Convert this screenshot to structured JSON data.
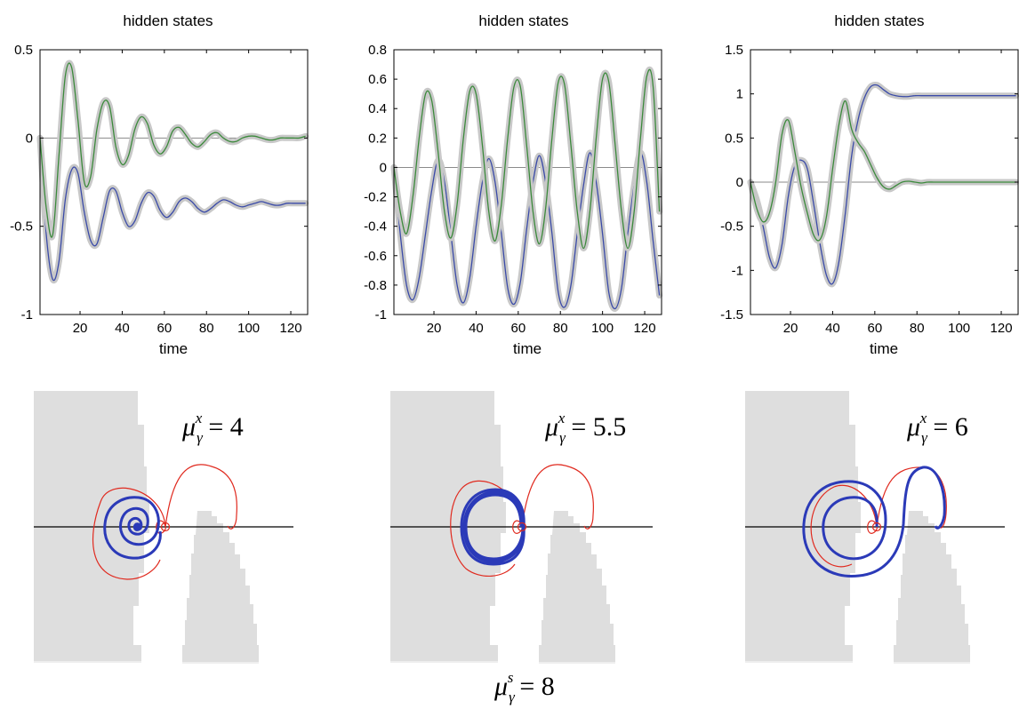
{
  "chart_data": [
    {
      "type": "line",
      "title": "hidden states",
      "xlabel": "time",
      "xlim": [
        1,
        128
      ],
      "ylim": [
        -1,
        0.5
      ],
      "xticks": [
        20,
        40,
        60,
        80,
        100,
        120
      ],
      "yticks": [
        -1,
        -0.5,
        0,
        0.5
      ],
      "ytick_labels": [
        "-1",
        "-0.5",
        "0",
        "0.5"
      ],
      "zero_line": true,
      "series": [
        {
          "color": "#3b4ba8",
          "x": [
            1,
            4,
            7,
            10,
            13,
            16,
            19,
            22,
            25,
            28,
            31,
            34,
            37,
            40,
            43,
            46,
            49,
            52,
            55,
            58,
            61,
            64,
            67,
            70,
            73,
            76,
            79,
            82,
            85,
            88,
            91,
            94,
            97,
            100,
            103,
            106,
            109,
            112,
            115,
            118,
            121,
            124,
            127
          ],
          "y": [
            0.0,
            -0.55,
            -0.8,
            -0.7,
            -0.35,
            -0.18,
            -0.2,
            -0.42,
            -0.58,
            -0.6,
            -0.45,
            -0.3,
            -0.3,
            -0.42,
            -0.5,
            -0.47,
            -0.37,
            -0.31,
            -0.33,
            -0.41,
            -0.45,
            -0.42,
            -0.36,
            -0.34,
            -0.36,
            -0.4,
            -0.42,
            -0.4,
            -0.37,
            -0.35,
            -0.36,
            -0.38,
            -0.39,
            -0.38,
            -0.37,
            -0.36,
            -0.37,
            -0.38,
            -0.38,
            -0.37,
            -0.37,
            -0.37,
            -0.37
          ]
        },
        {
          "color": "#3c8a3c",
          "x": [
            1,
            4,
            7,
            10,
            13,
            16,
            19,
            22,
            25,
            28,
            31,
            34,
            37,
            40,
            43,
            46,
            49,
            52,
            55,
            58,
            61,
            64,
            67,
            70,
            73,
            76,
            79,
            82,
            85,
            88,
            91,
            94,
            97,
            100,
            103,
            106,
            109,
            112,
            115,
            118,
            121,
            124,
            127
          ],
          "y": [
            0.0,
            -0.4,
            -0.55,
            -0.1,
            0.35,
            0.4,
            0.1,
            -0.25,
            -0.22,
            0.05,
            0.2,
            0.18,
            -0.05,
            -0.15,
            -0.1,
            0.05,
            0.12,
            0.08,
            -0.04,
            -0.09,
            -0.05,
            0.04,
            0.06,
            0.02,
            -0.03,
            -0.05,
            -0.02,
            0.02,
            0.03,
            0.0,
            -0.02,
            -0.02,
            0.0,
            0.01,
            0.01,
            0.0,
            -0.01,
            -0.01,
            0.0,
            0.0,
            0.0,
            0.0,
            0.01
          ]
        }
      ]
    },
    {
      "type": "line",
      "title": "hidden states",
      "xlabel": "time",
      "xlim": [
        1,
        128
      ],
      "ylim": [
        -1,
        0.8
      ],
      "xticks": [
        20,
        40,
        60,
        80,
        100,
        120
      ],
      "yticks": [
        -1,
        -0.8,
        -0.6,
        -0.4,
        -0.2,
        0,
        0.2,
        0.4,
        0.6,
        0.8
      ],
      "ytick_labels": [
        "-1",
        "-0.8",
        "-0.6",
        "-0.4",
        "-0.2",
        "0",
        "0.2",
        "0.4",
        "0.6",
        "0.8"
      ],
      "zero_line": true,
      "series": [
        {
          "color": "#3b4ba8",
          "x": [
            1,
            4,
            7,
            10,
            13,
            16,
            19,
            22,
            25,
            28,
            31,
            34,
            37,
            40,
            43,
            46,
            49,
            52,
            55,
            58,
            61,
            64,
            67,
            70,
            73,
            76,
            79,
            82,
            85,
            88,
            91,
            94,
            97,
            100,
            103,
            106,
            109,
            112,
            115,
            118,
            121,
            124,
            127
          ],
          "y": [
            0.0,
            -0.45,
            -0.8,
            -0.9,
            -0.75,
            -0.45,
            -0.15,
            0.05,
            -0.1,
            -0.45,
            -0.8,
            -0.92,
            -0.75,
            -0.4,
            -0.1,
            0.06,
            -0.1,
            -0.45,
            -0.82,
            -0.93,
            -0.78,
            -0.42,
            -0.1,
            0.08,
            -0.1,
            -0.45,
            -0.85,
            -0.95,
            -0.8,
            -0.45,
            -0.12,
            0.1,
            -0.1,
            -0.45,
            -0.85,
            -0.96,
            -0.82,
            -0.45,
            -0.12,
            0.1,
            -0.1,
            -0.5,
            -0.87
          ]
        },
        {
          "color": "#3c8a3c",
          "x": [
            1,
            4,
            7,
            10,
            13,
            16,
            19,
            22,
            25,
            28,
            31,
            34,
            37,
            40,
            43,
            46,
            49,
            52,
            55,
            58,
            61,
            64,
            67,
            70,
            73,
            76,
            79,
            82,
            85,
            88,
            91,
            94,
            97,
            100,
            103,
            106,
            109,
            112,
            115,
            118,
            121,
            124,
            127
          ],
          "y": [
            0.0,
            -0.3,
            -0.45,
            -0.2,
            0.2,
            0.5,
            0.45,
            0.1,
            -0.3,
            -0.48,
            -0.25,
            0.2,
            0.52,
            0.5,
            0.15,
            -0.3,
            -0.5,
            -0.25,
            0.2,
            0.55,
            0.55,
            0.15,
            -0.3,
            -0.52,
            -0.28,
            0.2,
            0.58,
            0.56,
            0.15,
            -0.3,
            -0.55,
            -0.3,
            0.2,
            0.6,
            0.58,
            0.15,
            -0.3,
            -0.55,
            -0.3,
            0.2,
            0.62,
            0.55,
            -0.3
          ]
        }
      ]
    },
    {
      "type": "line",
      "title": "hidden states",
      "xlabel": "time",
      "xlim": [
        1,
        128
      ],
      "ylim": [
        -1.5,
        1.5
      ],
      "xticks": [
        20,
        40,
        60,
        80,
        100,
        120
      ],
      "yticks": [
        -1.5,
        -1,
        -0.5,
        0,
        0.5,
        1,
        1.5
      ],
      "ytick_labels": [
        "-1.5",
        "-1",
        "-0.5",
        "0",
        "0.5",
        "1",
        "1.5"
      ],
      "zero_line": true,
      "series": [
        {
          "color": "#3b4ba8",
          "x": [
            1,
            4,
            7,
            10,
            13,
            16,
            19,
            22,
            25,
            28,
            31,
            34,
            37,
            40,
            43,
            46,
            49,
            52,
            55,
            58,
            61,
            64,
            67,
            70,
            73,
            76,
            79,
            82,
            85,
            88,
            91,
            94,
            97,
            100,
            103,
            106,
            109,
            112,
            115,
            118,
            121,
            124,
            127
          ],
          "y": [
            0.0,
            -0.2,
            -0.5,
            -0.85,
            -0.97,
            -0.7,
            -0.15,
            0.18,
            0.25,
            0.15,
            -0.25,
            -0.7,
            -1.05,
            -1.15,
            -0.9,
            -0.35,
            0.3,
            0.7,
            0.95,
            1.08,
            1.1,
            1.05,
            1.0,
            0.98,
            0.97,
            0.97,
            0.98,
            0.98,
            0.98,
            0.98,
            0.98,
            0.98,
            0.98,
            0.98,
            0.98,
            0.98,
            0.98,
            0.98,
            0.98,
            0.98,
            0.98,
            0.98,
            0.98
          ]
        },
        {
          "color": "#3c8a3c",
          "x": [
            1,
            4,
            7,
            10,
            13,
            16,
            19,
            22,
            25,
            28,
            31,
            34,
            37,
            40,
            43,
            46,
            49,
            52,
            55,
            58,
            61,
            64,
            67,
            70,
            73,
            76,
            79,
            82,
            85,
            88,
            91,
            94,
            97,
            100,
            103,
            106,
            109,
            112,
            115,
            118,
            121,
            124,
            127
          ],
          "y": [
            0.0,
            -0.3,
            -0.45,
            -0.35,
            0.0,
            0.55,
            0.7,
            0.35,
            -0.05,
            -0.35,
            -0.6,
            -0.65,
            -0.4,
            0.15,
            0.65,
            0.92,
            0.6,
            0.45,
            0.35,
            0.2,
            0.05,
            -0.05,
            -0.08,
            -0.04,
            0.0,
            0.01,
            0.0,
            -0.01,
            0.0,
            0.0,
            0.0,
            0.0,
            0.0,
            0.0,
            0.0,
            0.0,
            0.0,
            0.0,
            0.0,
            0.0,
            0.0,
            0.0,
            0.0
          ]
        }
      ]
    }
  ],
  "trajectories": [
    {
      "label_symbol": "μ",
      "label_sub": "γ",
      "label_sup": "x",
      "label_value": "= 4",
      "pattern": "spiral-in"
    },
    {
      "label_symbol": "μ",
      "label_sub": "γ",
      "label_sup": "x",
      "label_value": "= 5.5",
      "pattern": "limit-cycle"
    },
    {
      "label_symbol": "μ",
      "label_sub": "γ",
      "label_sup": "x",
      "label_value": "= 6",
      "pattern": "escape"
    }
  ],
  "shared_label": {
    "symbol": "μ",
    "sub": "γ",
    "sup": "s",
    "value": "= 8"
  },
  "colors": {
    "blue_state": "#3b4ba8",
    "green_state": "#3c8a3c",
    "prior_path": "#e02a1f",
    "trajectory": "#2b3ab8",
    "obstacle": "#dedede",
    "band": "#c8c8c8"
  }
}
